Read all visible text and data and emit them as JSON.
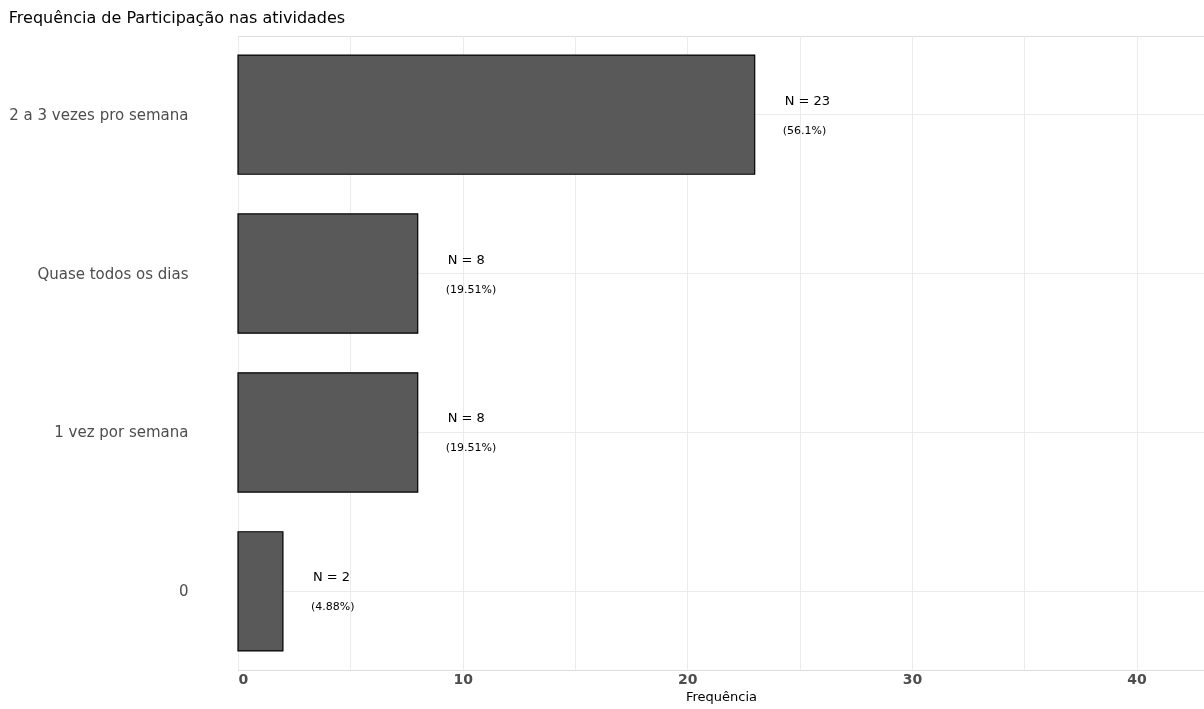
{
  "chart_data": {
    "type": "bar",
    "orientation": "horizontal",
    "title": "Frequência de Participação nas atividades",
    "xlabel": "Frequência",
    "categories": [
      "2 a 3 vezes pro semana",
      "Quase todos os dias",
      "1 vez por semana",
      "0"
    ],
    "values": [
      23,
      8,
      8,
      2
    ],
    "color": "#595959",
    "value_labels": [
      "N = 23\n(56.1%)",
      "N = 8\n(19.51%)",
      "N = 8\n(19.51%)",
      "N = 2\n(4.88%)"
    ],
    "xlim": [
      0,
      43
    ],
    "xticks": [
      0,
      {
        "value": 5,
        "label": null
      },
      10,
      {
        "value": 15,
        "label": null
      },
      20,
      {
        "value": 25,
        "label": null
      },
      30,
      {
        "value": 35,
        "label": null
      },
      40
    ],
    "grid": true
  }
}
